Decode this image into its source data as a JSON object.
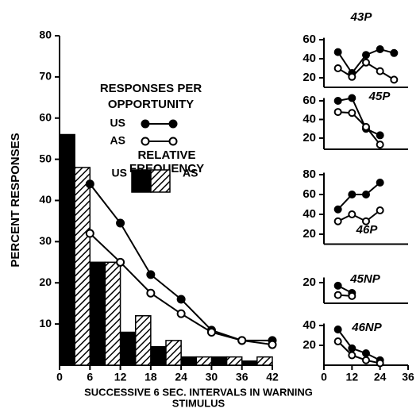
{
  "chart_data": [
    {
      "type": "histogram",
      "ylabel": "PERCENT RESPONSES",
      "xlabel": [
        "SUCCESSIVE 6 SEC. INTERVALS IN WARNING",
        "STIMULUS"
      ],
      "xlim": [
        0,
        42
      ],
      "xticks": [
        0,
        6,
        12,
        18,
        24,
        30,
        36,
        42
      ],
      "ylim": [
        0,
        80
      ],
      "yticks": [
        10,
        20,
        30,
        40,
        50,
        60,
        70,
        80
      ],
      "bins": [
        0,
        6,
        12,
        18,
        24,
        30,
        36,
        42
      ],
      "bar_legend_title": [
        "RELATIVE",
        "FREQUENCY"
      ],
      "series": [
        {
          "name": "US",
          "color": "#000000",
          "fill": "solid",
          "values": [
            56,
            25,
            8,
            4.5,
            2,
            2,
            1
          ]
        },
        {
          "name": "AS",
          "color": "#000000",
          "fill": "hatch",
          "values": [
            48,
            25,
            12,
            6,
            2,
            2,
            2
          ]
        }
      ],
      "line_legend_title": [
        "RESPONSES PER",
        "OPPORTUNITY"
      ],
      "lines": [
        {
          "name": "US",
          "marker": "filled",
          "x": [
            6,
            12,
            18,
            24,
            30,
            36,
            42
          ],
          "values": [
            44,
            34.5,
            22,
            16,
            8.5,
            6,
            6
          ]
        },
        {
          "name": "AS",
          "marker": "open",
          "x": [
            6,
            12,
            18,
            24,
            30,
            36,
            42
          ],
          "values": [
            32,
            25,
            17.5,
            12.5,
            8,
            6,
            5
          ]
        }
      ]
    },
    {
      "type": "line",
      "title": "43P",
      "xlim": [
        0,
        36
      ],
      "ylim": [
        10,
        62
      ],
      "yticks": [
        20,
        40,
        60
      ],
      "lines": [
        {
          "marker": "filled",
          "x": [
            6,
            12,
            18,
            24,
            30
          ],
          "values": [
            47,
            25,
            44,
            50,
            46
          ]
        },
        {
          "marker": "open",
          "x": [
            6,
            12,
            18,
            24,
            30
          ],
          "values": [
            30,
            21,
            36,
            27,
            18
          ]
        }
      ]
    },
    {
      "type": "line",
      "title": "45P",
      "xlim": [
        0,
        36
      ],
      "ylim": [
        8,
        63
      ],
      "yticks": [
        20,
        40,
        60
      ],
      "lines": [
        {
          "marker": "filled",
          "x": [
            6,
            12,
            18,
            24
          ],
          "values": [
            60,
            63,
            30,
            23
          ]
        },
        {
          "marker": "open",
          "x": [
            6,
            12,
            18,
            24
          ],
          "values": [
            48,
            47,
            32,
            13
          ]
        }
      ]
    },
    {
      "type": "line",
      "title": "46P",
      "xlim": [
        0,
        36
      ],
      "ylim": [
        10,
        82
      ],
      "yticks": [
        20,
        40,
        60,
        80
      ],
      "lines": [
        {
          "marker": "filled",
          "x": [
            6,
            12,
            18,
            24
          ],
          "values": [
            45,
            60,
            60,
            72
          ]
        },
        {
          "marker": "open",
          "x": [
            6,
            12,
            18,
            24
          ],
          "values": [
            33,
            40,
            33,
            44
          ]
        }
      ]
    },
    {
      "type": "line",
      "title": "45NP",
      "xlim": [
        0,
        36
      ],
      "ylim": [
        0,
        25
      ],
      "yticks": [
        20
      ],
      "lines": [
        {
          "marker": "filled",
          "x": [
            6,
            12
          ],
          "values": [
            17,
            10
          ]
        },
        {
          "marker": "open",
          "x": [
            6,
            12
          ],
          "values": [
            8,
            7
          ]
        }
      ]
    },
    {
      "type": "line",
      "title": "46NP",
      "xlim": [
        0,
        36
      ],
      "ylim": [
        0,
        42
      ],
      "yticks": [
        20,
        40
      ],
      "xticks": [
        0,
        12,
        24,
        36
      ],
      "lines": [
        {
          "marker": "filled",
          "x": [
            6,
            12,
            18,
            24
          ],
          "values": [
            36,
            17,
            12,
            5
          ]
        },
        {
          "marker": "open",
          "x": [
            6,
            12,
            18,
            24
          ],
          "values": [
            24,
            10,
            5,
            2
          ]
        }
      ]
    }
  ]
}
